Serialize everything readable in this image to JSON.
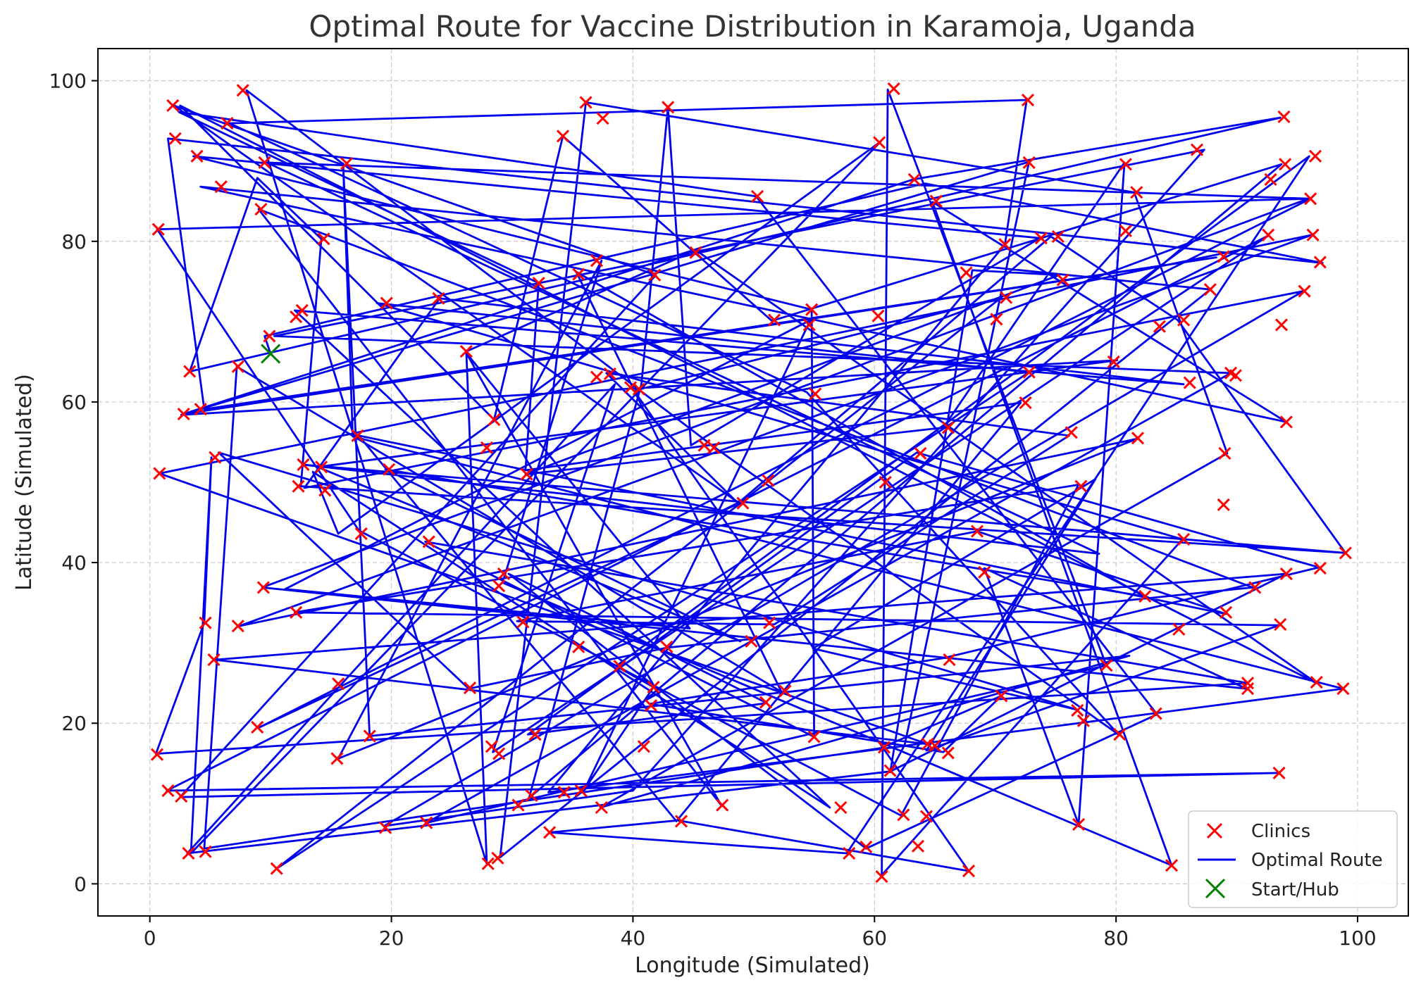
{
  "chart_data": {
    "type": "scatter",
    "title": "Optimal Route for Vaccine Distribution in Karamoja, Uganda",
    "xlabel": "Longitude (Simulated)",
    "ylabel": "Latitude (Simulated)",
    "xlim": [
      -4.3,
      104.2
    ],
    "ylim": [
      -4,
      104
    ],
    "xticks": [
      0,
      20,
      40,
      60,
      80,
      100
    ],
    "yticks": [
      0,
      20,
      40,
      60,
      80,
      100
    ],
    "grid": true,
    "legend_position": "bottom-right",
    "colors": {
      "clinics": "#ff0000",
      "route": "#0000ee",
      "hub": "#008000"
    },
    "legend": [
      {
        "label": "Clinics",
        "marker": "x",
        "color": "#ff0000"
      },
      {
        "label": "Optimal Route",
        "marker": "line",
        "color": "#0000ee"
      },
      {
        "label": "Start/Hub",
        "marker": "x",
        "color": "#008000"
      }
    ],
    "hub": {
      "x": 10,
      "y": 66
    },
    "route": [
      [
        10,
        66
      ],
      [
        9.5,
        68.2
      ],
      [
        64.2,
        87.2
      ],
      [
        97.1,
        77.3
      ],
      [
        1.5,
        92.8
      ],
      [
        4.5,
        59.1
      ],
      [
        88.3,
        78
      ],
      [
        2.8,
        58.5
      ],
      [
        63.2,
        87.7
      ],
      [
        93.6,
        95.4
      ],
      [
        3.3,
        63.8
      ],
      [
        8.9,
        87.9
      ],
      [
        14.2,
        80.3
      ],
      [
        12.5,
        49.5
      ],
      [
        99,
        41.2
      ],
      [
        12.6,
        52.2
      ],
      [
        78.6,
        41.1
      ],
      [
        9.7,
        89.8
      ],
      [
        96.1,
        85.3
      ],
      [
        9.1,
        19.5
      ],
      [
        48.8,
        47.4
      ],
      [
        2,
        96.9
      ],
      [
        41.9,
        75.8
      ],
      [
        2.5,
        10.8
      ],
      [
        93.4,
        13.8
      ],
      [
        1.4,
        11.6
      ],
      [
        92.6,
        80.7
      ],
      [
        28.4,
        16.4
      ],
      [
        38.5,
        62.2
      ],
      [
        3.1,
        3.8
      ],
      [
        61.3,
        14
      ],
      [
        94.1,
        38.6
      ],
      [
        5.4,
        27.9
      ],
      [
        64.4,
        17.4
      ],
      [
        0.8,
        51.1
      ],
      [
        96.2,
        80.8
      ],
      [
        7.4,
        32.1
      ],
      [
        81.7,
        55.4
      ],
      [
        15.6,
        15.6
      ],
      [
        37.4,
        77.6
      ],
      [
        29.2,
        37.5
      ],
      [
        84.6,
        2.3
      ],
      [
        64.8,
        84.9
      ],
      [
        94.1,
        57.5
      ],
      [
        4.2,
        86.8
      ],
      [
        87.8,
        74
      ],
      [
        29,
        3.3
      ],
      [
        36.1,
        97.3
      ],
      [
        81.5,
        86.1
      ],
      [
        89.2,
        53.6
      ],
      [
        37.3,
        9.5
      ],
      [
        81.1,
        28.4
      ],
      [
        18.2,
        18.4
      ],
      [
        16,
        89.7
      ],
      [
        16.8,
        55.7
      ],
      [
        98.8,
        24.3
      ],
      [
        33,
        11.4
      ],
      [
        70.8,
        79.6
      ],
      [
        72.6,
        97.6
      ],
      [
        6.6,
        94.7
      ],
      [
        54.4,
        61.2
      ],
      [
        80.2,
        18.6
      ],
      [
        46.8,
        54.3
      ],
      [
        8,
        98.8
      ],
      [
        27.9,
        2.5
      ],
      [
        26.2,
        66.3
      ],
      [
        45.2,
        78.9
      ],
      [
        96.6,
        25
      ],
      [
        2.5,
        96.9
      ],
      [
        28.5,
        57.8
      ],
      [
        34.2,
        93.1
      ],
      [
        51.5,
        70.1
      ],
      [
        93.7,
        89.6
      ],
      [
        31.4,
        10.7
      ],
      [
        40.7,
        62.2
      ],
      [
        42.9,
        96.7
      ],
      [
        44.8,
        54.6
      ],
      [
        73.7,
        80.4
      ],
      [
        3.6,
        90.6
      ],
      [
        54.8,
        71.5
      ],
      [
        55,
        18.3
      ],
      [
        22.8,
        42.6
      ],
      [
        90.9,
        25
      ],
      [
        0.5,
        16.2
      ],
      [
        4.5,
        32.5
      ],
      [
        5.1,
        53.1
      ],
      [
        3.4,
        3.8
      ],
      [
        60.5,
        92.4
      ],
      [
        15.6,
        43.6
      ],
      [
        13.5,
        51.3
      ],
      [
        56.3,
        9.5
      ],
      [
        12,
        71.4
      ],
      [
        85.6,
        62.2
      ],
      [
        24,
        72.9
      ],
      [
        12.8,
        49.3
      ],
      [
        95.5,
        73.8
      ],
      [
        19.4,
        7.2
      ],
      [
        40,
        11.6
      ],
      [
        87.3,
        91.4
      ],
      [
        10.3,
        68.2
      ],
      [
        89.5,
        63.6
      ],
      [
        22.9,
        7.6
      ],
      [
        79.2,
        27.2
      ],
      [
        61.1,
        98.9
      ],
      [
        60.6,
        1.1
      ],
      [
        85.5,
        42.9
      ],
      [
        18.8,
        72.3
      ],
      [
        72.8,
        63.7
      ],
      [
        10.5,
        1.9
      ],
      [
        70.5,
        73
      ],
      [
        40.1,
        61.4
      ],
      [
        67.8,
        1.6
      ],
      [
        43.7,
        7.9
      ],
      [
        33.1,
        6.4
      ],
      [
        57.7,
        3.8
      ],
      [
        96,
        90.6
      ],
      [
        38.6,
        27.1
      ],
      [
        41.7,
        24.5
      ],
      [
        36,
        11.8
      ],
      [
        54.7,
        70.2
      ],
      [
        11.2,
        36.7
      ],
      [
        44.7,
        31.8
      ],
      [
        26.2,
        66.1
      ],
      [
        47.3,
        9.8
      ],
      [
        9,
        84
      ],
      [
        91.3,
        36.9
      ],
      [
        42.8,
        29.4
      ],
      [
        26.4,
        24.3
      ],
      [
        5.7,
        53.7
      ],
      [
        76.7,
        21.7
      ],
      [
        54.9,
        29.3
      ],
      [
        78.3,
        50.4
      ],
      [
        64.3,
        16.6
      ],
      [
        93.5,
        32.2
      ],
      [
        12,
        33.8
      ],
      [
        76.9,
        49.7
      ],
      [
        62.2,
        8.5
      ],
      [
        17.3,
        44
      ],
      [
        0.6,
        81.5
      ],
      [
        95.9,
        85.3
      ],
      [
        9.3,
        36.9
      ],
      [
        90.8,
        24.3
      ],
      [
        69.1,
        39.3
      ],
      [
        76.9,
        7.4
      ],
      [
        80.7,
        89.8
      ],
      [
        65.7,
        56.8
      ],
      [
        31.1,
        51
      ],
      [
        75.3,
        75.8
      ],
      [
        68.1,
        76.4
      ],
      [
        61.3,
        13.9
      ],
      [
        62.5,
        17.3
      ],
      [
        72.8,
        89.9
      ],
      [
        2.6,
        58.4
      ],
      [
        80.1,
        65.2
      ],
      [
        13.9,
        51.9
      ],
      [
        48.9,
        30.2
      ],
      [
        19.5,
        51.6
      ],
      [
        82.3,
        35.8
      ],
      [
        35.3,
        76.2
      ],
      [
        52.3,
        23.9
      ],
      [
        7.2,
        64.4
      ],
      [
        4.5,
        4.4
      ],
      [
        60.5,
        16.9
      ],
      [
        70.5,
        23.4
      ],
      [
        65.7,
        16.4
      ],
      [
        41.4,
        22.4
      ],
      [
        65.7,
        28.1
      ],
      [
        96.8,
        39.4
      ],
      [
        63.5,
        53.7
      ],
      [
        31.3,
        18.6
      ],
      [
        51.1,
        22.5
      ],
      [
        29.7,
        38.6
      ],
      [
        59.3,
        4.4
      ],
      [
        83.4,
        21.1
      ],
      [
        50.2,
        85.6
      ],
      [
        2.4,
        96.1
      ],
      [
        32.2,
        74.8
      ],
      [
        31.1,
        51.5
      ],
      [
        72.1,
        59.9
      ],
      [
        43.6,
        7.8
      ],
      [
        17.3,
        55.8
      ],
      [
        89.1,
        33.6
      ],
      [
        68.5,
        43.9
      ],
      [
        30.4,
        32.7
      ],
      [
        51.7,
        32.3
      ],
      [
        76.1,
        55.8
      ],
      [
        37.8,
        63.6
      ],
      [
        48.7,
        47.4
      ],
      [
        74.6,
        80.6
      ],
      [
        85.1,
        70.2
      ],
      [
        99,
        41.2
      ]
    ],
    "clinics": [
      [
        1.9,
        96.9
      ],
      [
        7.7,
        98.8
      ],
      [
        2.1,
        92.8
      ],
      [
        6.4,
        94.7
      ],
      [
        3.9,
        90.6
      ],
      [
        9.5,
        89.8
      ],
      [
        16.3,
        89.7
      ],
      [
        5.9,
        86.8
      ],
      [
        9.2,
        84
      ],
      [
        0.7,
        81.5
      ],
      [
        14.4,
        80.3
      ],
      [
        12.1,
        70.6
      ],
      [
        12.6,
        71.4
      ],
      [
        9.9,
        68.2
      ],
      [
        3.3,
        63.8
      ],
      [
        7.3,
        64.4
      ],
      [
        2.8,
        58.5
      ],
      [
        4.2,
        59.1
      ],
      [
        5.4,
        53.1
      ],
      [
        0.8,
        51.1
      ],
      [
        17.2,
        55.8
      ],
      [
        12.7,
        52.2
      ],
      [
        14.2,
        51.9
      ],
      [
        12.3,
        49.5
      ],
      [
        14.5,
        49
      ],
      [
        17.5,
        43.6
      ],
      [
        19.8,
        51.6
      ],
      [
        19.6,
        72.3
      ],
      [
        23.9,
        72.9
      ],
      [
        26.2,
        66.3
      ],
      [
        28.5,
        57.8
      ],
      [
        27.9,
        54.3
      ],
      [
        31.2,
        51
      ],
      [
        23.1,
        42.6
      ],
      [
        29.3,
        38.6
      ],
      [
        28.9,
        37.1
      ],
      [
        9.4,
        36.9
      ],
      [
        4.6,
        32.5
      ],
      [
        7.3,
        32.1
      ],
      [
        12.1,
        33.8
      ],
      [
        5.3,
        27.9
      ],
      [
        15.6,
        24.9
      ],
      [
        8.9,
        19.5
      ],
      [
        0.6,
        16.1
      ],
      [
        15.5,
        15.6
      ],
      [
        18.2,
        18.4
      ],
      [
        1.5,
        11.6
      ],
      [
        2.6,
        10.9
      ],
      [
        3.2,
        3.8
      ],
      [
        4.6,
        4
      ],
      [
        10.5,
        1.9
      ],
      [
        19.5,
        7
      ],
      [
        22.9,
        7.6
      ],
      [
        26.5,
        24.4
      ],
      [
        28.3,
        17.1
      ],
      [
        28.9,
        16.2
      ],
      [
        28,
        2.5
      ],
      [
        28.8,
        3.2
      ],
      [
        30.5,
        9.8
      ],
      [
        31.6,
        11
      ],
      [
        31.9,
        18.6
      ],
      [
        30.9,
        32.6
      ],
      [
        33.1,
        6.4
      ],
      [
        34.3,
        11.4
      ],
      [
        35.7,
        11.6
      ],
      [
        37.4,
        9.5
      ],
      [
        35.5,
        29.5
      ],
      [
        38.9,
        27.1
      ],
      [
        41.7,
        24.5
      ],
      [
        41.5,
        22.2
      ],
      [
        40.9,
        17.1
      ],
      [
        42.8,
        29.5
      ],
      [
        44,
        7.8
      ],
      [
        47.4,
        9.8
      ],
      [
        36.1,
        97.3
      ],
      [
        37.5,
        95.3
      ],
      [
        42.9,
        96.7
      ],
      [
        34.2,
        93.1
      ],
      [
        35.5,
        75.9
      ],
      [
        37,
        77.6
      ],
      [
        41.8,
        75.8
      ],
      [
        45.2,
        78.6
      ],
      [
        38.1,
        63.5
      ],
      [
        37,
        63.1
      ],
      [
        39.8,
        61.8
      ],
      [
        40.5,
        61.6
      ],
      [
        32.2,
        74.8
      ],
      [
        45.9,
        54.6
      ],
      [
        46.7,
        54.3
      ],
      [
        49.1,
        47.4
      ],
      [
        51.2,
        50.2
      ],
      [
        49.8,
        30.2
      ],
      [
        51.3,
        32.5
      ],
      [
        51,
        22.6
      ],
      [
        52.6,
        24
      ],
      [
        50.3,
        85.6
      ],
      [
        51.7,
        70.2
      ],
      [
        54.8,
        71.5
      ],
      [
        54.6,
        69.6
      ],
      [
        55.1,
        61
      ],
      [
        55,
        18.3
      ],
      [
        57.2,
        9.5
      ],
      [
        57.9,
        3.8
      ],
      [
        59.3,
        4.6
      ],
      [
        60.4,
        92.3
      ],
      [
        61.6,
        99
      ],
      [
        63.3,
        87.7
      ],
      [
        65.1,
        85
      ],
      [
        60.3,
        70.7
      ],
      [
        60.9,
        50
      ],
      [
        63.8,
        53.6
      ],
      [
        66.1,
        56.8
      ],
      [
        61.3,
        14.1
      ],
      [
        60.8,
        17
      ],
      [
        60.6,
        0.9
      ],
      [
        62.4,
        8.6
      ],
      [
        63.6,
        4.7
      ],
      [
        64.4,
        17.4
      ],
      [
        65,
        17.2
      ],
      [
        64.3,
        8.4
      ],
      [
        66.1,
        16.3
      ],
      [
        66.2,
        27.9
      ],
      [
        67.8,
        1.6
      ],
      [
        68.5,
        43.9
      ],
      [
        69.1,
        38.8
      ],
      [
        67.6,
        76.1
      ],
      [
        70.1,
        70.3
      ],
      [
        70.9,
        73
      ],
      [
        70.8,
        79.6
      ],
      [
        72.7,
        97.6
      ],
      [
        72.8,
        89.8
      ],
      [
        73.8,
        80.4
      ],
      [
        75.2,
        80.6
      ],
      [
        75.6,
        75.2
      ],
      [
        72.8,
        63.7
      ],
      [
        72.5,
        59.9
      ],
      [
        76.3,
        56.2
      ],
      [
        77.1,
        49.5
      ],
      [
        70.5,
        23.4
      ],
      [
        76.8,
        21.6
      ],
      [
        77.3,
        20.3
      ],
      [
        76.9,
        7.4
      ],
      [
        79.2,
        27.2
      ],
      [
        80.3,
        18.6
      ],
      [
        79.8,
        65
      ],
      [
        81.8,
        55.5
      ],
      [
        80.8,
        89.6
      ],
      [
        81.7,
        86.1
      ],
      [
        80.8,
        81.3
      ],
      [
        82.4,
        35.8
      ],
      [
        83.3,
        21.2
      ],
      [
        84.6,
        2.3
      ],
      [
        85.6,
        42.9
      ],
      [
        85.2,
        31.7
      ],
      [
        85.6,
        70.2
      ],
      [
        83.6,
        69.4
      ],
      [
        86.1,
        62.4
      ],
      [
        87.8,
        74
      ],
      [
        86.7,
        91.4
      ],
      [
        88.9,
        78.1
      ],
      [
        89,
        53.6
      ],
      [
        89.5,
        63.6
      ],
      [
        89.9,
        63.3
      ],
      [
        88.9,
        47.2
      ],
      [
        89.1,
        33.8
      ],
      [
        91.5,
        36.9
      ],
      [
        90.9,
        25
      ],
      [
        90.9,
        24.3
      ],
      [
        92.8,
        87.7
      ],
      [
        92.6,
        80.8
      ],
      [
        93.7,
        69.6
      ],
      [
        93.9,
        95.5
      ],
      [
        94,
        89.6
      ],
      [
        94.1,
        57.5
      ],
      [
        94.1,
        38.6
      ],
      [
        93.6,
        32.3
      ],
      [
        93.5,
        13.8
      ],
      [
        95.6,
        73.8
      ],
      [
        96.1,
        85.3
      ],
      [
        96.3,
        80.8
      ],
      [
        96.5,
        90.6
      ],
      [
        96.9,
        77.4
      ],
      [
        96.9,
        39.3
      ],
      [
        96.6,
        25.1
      ],
      [
        98.8,
        24.3
      ],
      [
        99,
        41.2
      ]
    ]
  }
}
